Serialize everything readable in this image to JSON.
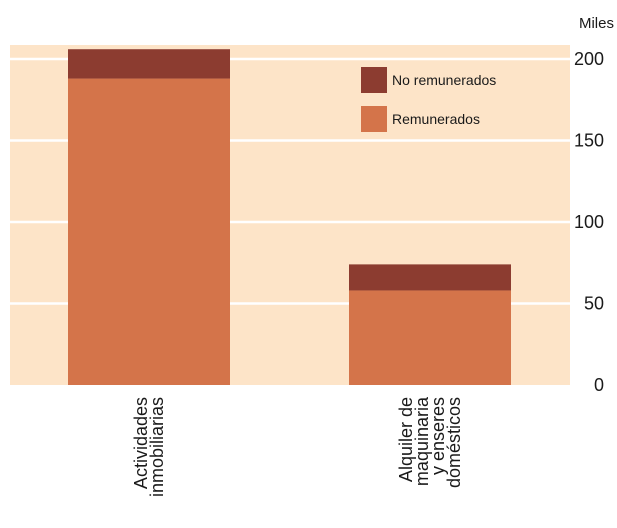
{
  "chart_data": {
    "type": "bar",
    "stacked": true,
    "unit_label": "Miles",
    "categories": [
      [
        "Actividades",
        "inmobiliarias"
      ],
      [
        "Alquiler de",
        "maquinaria",
        "y enseres",
        "domésticos"
      ]
    ],
    "series": [
      {
        "name": "Remunerados",
        "values": [
          188,
          58
        ],
        "color": "#d4744a"
      },
      {
        "name": "No remunerados",
        "values": [
          18,
          16
        ],
        "color": "#8c3c30"
      }
    ],
    "ylim": [
      0,
      200
    ],
    "yticks": [
      "0",
      "50",
      "100",
      "150",
      "200"
    ],
    "grid": true,
    "background_color": "#fde4c8",
    "gridline_color": "#ffffff",
    "legend_position": "top-right",
    "axis_position": "right"
  }
}
